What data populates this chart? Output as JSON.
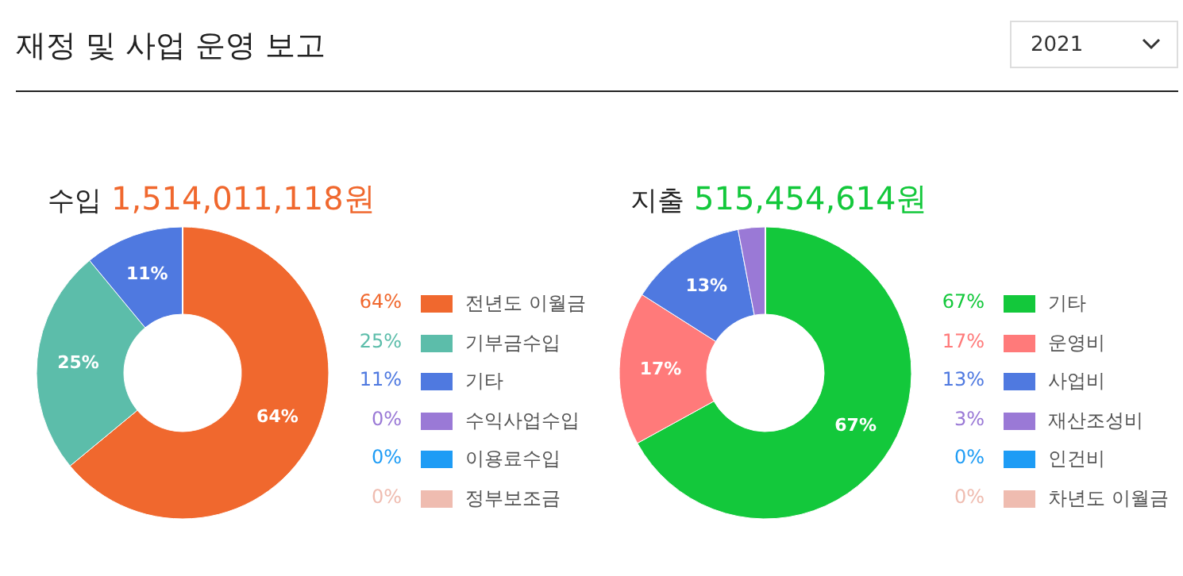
{
  "chart_data": [
    {
      "type": "donut",
      "title": "수입",
      "subtitle": "1,514,011,118원",
      "annotations": [
        "재정 및 사업 운영 보고",
        "2021"
      ],
      "categories": [
        "전년도 이월금",
        "기부금수입",
        "기타",
        "수익사업수입",
        "이용료수입",
        "정부보조금"
      ],
      "values": [
        64,
        25,
        11,
        0,
        0,
        0
      ],
      "colors": [
        "#f0682e",
        "#5cbdaa",
        "#4f79e0",
        "#9a79d6",
        "#1e9cf5",
        "#efbcb0"
      ],
      "value_labels": [
        "64%",
        "25%",
        "11%",
        "0%",
        "0%",
        "0%"
      ],
      "legend": "right"
    },
    {
      "type": "donut",
      "title": "지출",
      "subtitle": "515,454,614원",
      "categories": [
        "기타",
        "운영비",
        "사업비",
        "재산조성비",
        "인건비",
        "차년도 이월금"
      ],
      "values": [
        67,
        17,
        13,
        3,
        0,
        0
      ],
      "colors": [
        "#13c83b",
        "#ff7a7a",
        "#4f79e0",
        "#9a79d6",
        "#1e9cf5",
        "#efbcb0"
      ],
      "value_labels": [
        "67%",
        "17%",
        "13%",
        "3%",
        "0%",
        "0%"
      ],
      "legend": "right"
    }
  ]
}
